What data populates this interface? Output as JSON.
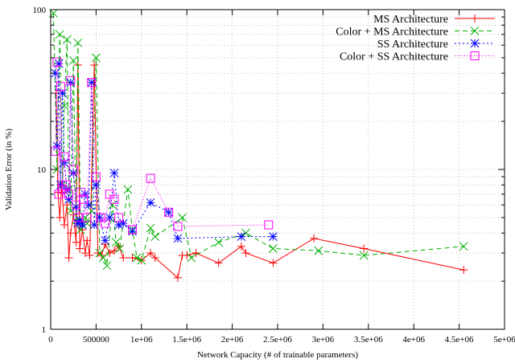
{
  "chart_data": {
    "type": "line",
    "title": "",
    "xlabel": "Network Capacity (# of trainable parameters)",
    "ylabel": "Validation Error (in %)",
    "xlim": [
      0,
      5000000
    ],
    "ylim": [
      1,
      100
    ],
    "yscale": "log",
    "grid": true,
    "grid_style": "dotted",
    "legend_position": "top-right",
    "x_ticks": [
      0,
      500000,
      1000000,
      1500000,
      2000000,
      2500000,
      3000000,
      3500000,
      4000000,
      4500000,
      5000000
    ],
    "x_tick_labels": [
      "0",
      "500000",
      "1e+06",
      "1.5e+06",
      "2e+06",
      "2.5e+06",
      "3e+06",
      "3.5e+06",
      "4e+06",
      "4.5e+06",
      "5e+06"
    ],
    "y_ticks": [
      1,
      10,
      100
    ],
    "y_tick_labels": [
      "1",
      "10",
      "100"
    ],
    "series": [
      {
        "name": "MS Architecture",
        "color": "#ff0000",
        "dash": "solid",
        "marker": "plus",
        "points": [
          [
            60000,
            30
          ],
          [
            80000,
            7.2
          ],
          [
            100000,
            5.0
          ],
          [
            120000,
            8.0
          ],
          [
            150000,
            4.5
          ],
          [
            180000,
            6.0
          ],
          [
            200000,
            2.8
          ],
          [
            220000,
            4.0
          ],
          [
            250000,
            5.2
          ],
          [
            280000,
            3.5
          ],
          [
            300000,
            45
          ],
          [
            320000,
            3.2
          ],
          [
            350000,
            4.2
          ],
          [
            380000,
            3.0
          ],
          [
            400000,
            3.6
          ],
          [
            430000,
            2.9
          ],
          [
            480000,
            45
          ],
          [
            520000,
            3.0
          ],
          [
            560000,
            2.9
          ],
          [
            600000,
            3.4
          ],
          [
            650000,
            3.0
          ],
          [
            700000,
            3.1
          ],
          [
            750000,
            3.3
          ],
          [
            800000,
            2.8
          ],
          [
            900000,
            2.8
          ],
          [
            1000000,
            2.7
          ],
          [
            1100000,
            3.0
          ],
          [
            1150000,
            2.8
          ],
          [
            1400000,
            2.1
          ],
          [
            1450000,
            2.9
          ],
          [
            1500000,
            2.9
          ],
          [
            1600000,
            3.0
          ],
          [
            1850000,
            2.6
          ],
          [
            2100000,
            3.3
          ],
          [
            2150000,
            3.0
          ],
          [
            2450000,
            2.6
          ],
          [
            2900000,
            3.7
          ],
          [
            3450000,
            3.2
          ],
          [
            4550000,
            2.35
          ]
        ]
      },
      {
        "name": "Color + MS Architecture",
        "color": "#00b000",
        "dash": "6,4",
        "marker": "cross",
        "points": [
          [
            30000,
            95
          ],
          [
            70000,
            10
          ],
          [
            100000,
            70
          ],
          [
            130000,
            8.0
          ],
          [
            150000,
            25
          ],
          [
            180000,
            65
          ],
          [
            200000,
            7.5
          ],
          [
            220000,
            5.5
          ],
          [
            250000,
            48
          ],
          [
            280000,
            4.8
          ],
          [
            300000,
            62
          ],
          [
            330000,
            4.2
          ],
          [
            350000,
            4.5
          ],
          [
            380000,
            5.0
          ],
          [
            400000,
            4.6
          ],
          [
            450000,
            5.5
          ],
          [
            500000,
            50
          ],
          [
            540000,
            3.0
          ],
          [
            580000,
            2.8
          ],
          [
            620000,
            2.5
          ],
          [
            680000,
            6.0
          ],
          [
            720000,
            3.5
          ],
          [
            760000,
            3.2
          ],
          [
            850000,
            7.5
          ],
          [
            900000,
            4.2
          ],
          [
            950000,
            2.8
          ],
          [
            1000000,
            2.7
          ],
          [
            1100000,
            4.3
          ],
          [
            1150000,
            3.8
          ],
          [
            1450000,
            5.0
          ],
          [
            1550000,
            2.8
          ],
          [
            1850000,
            3.5
          ],
          [
            2150000,
            4.0
          ],
          [
            2450000,
            3.2
          ],
          [
            2950000,
            3.1
          ],
          [
            3450000,
            2.9
          ],
          [
            4550000,
            3.3
          ]
        ]
      },
      {
        "name": "SS Architecture",
        "color": "#0000ff",
        "dash": "2,3",
        "marker": "star",
        "points": [
          [
            50000,
            40
          ],
          [
            70000,
            14
          ],
          [
            90000,
            46
          ],
          [
            110000,
            8.0
          ],
          [
            130000,
            30
          ],
          [
            150000,
            11
          ],
          [
            180000,
            7.5
          ],
          [
            200000,
            6.5
          ],
          [
            220000,
            35
          ],
          [
            250000,
            9.5
          ],
          [
            280000,
            5.8
          ],
          [
            300000,
            4.6
          ],
          [
            320000,
            4.8
          ],
          [
            350000,
            4.5
          ],
          [
            380000,
            7.0
          ],
          [
            420000,
            6.0
          ],
          [
            450000,
            35
          ],
          [
            480000,
            4.5
          ],
          [
            500000,
            8.0
          ],
          [
            540000,
            5.0
          ],
          [
            600000,
            3.6
          ],
          [
            650000,
            5.0
          ],
          [
            700000,
            9.5
          ],
          [
            750000,
            4.5
          ],
          [
            800000,
            4.6
          ],
          [
            900000,
            4.1
          ],
          [
            1100000,
            6.2
          ],
          [
            1300000,
            5.4
          ],
          [
            1400000,
            3.7
          ],
          [
            2100000,
            3.8
          ],
          [
            2450000,
            3.8
          ]
        ]
      },
      {
        "name": "Color + SS Architecture",
        "color": "#ff00ff",
        "dash": "1,2",
        "marker": "square",
        "points": [
          [
            50000,
            13
          ],
          [
            70000,
            47
          ],
          [
            90000,
            7.0
          ],
          [
            110000,
            33
          ],
          [
            130000,
            7.5
          ],
          [
            150000,
            12
          ],
          [
            170000,
            8.0
          ],
          [
            200000,
            7.0
          ],
          [
            220000,
            36
          ],
          [
            250000,
            10
          ],
          [
            280000,
            6.0
          ],
          [
            300000,
            5.0
          ],
          [
            330000,
            7.2
          ],
          [
            360000,
            6.5
          ],
          [
            400000,
            5.0
          ],
          [
            450000,
            35
          ],
          [
            500000,
            9.0
          ],
          [
            550000,
            5.0
          ],
          [
            600000,
            4.6
          ],
          [
            650000,
            7.0
          ],
          [
            700000,
            6.5
          ],
          [
            750000,
            5.0
          ],
          [
            900000,
            4.2
          ],
          [
            1100000,
            8.8
          ],
          [
            1300000,
            5.4
          ],
          [
            1400000,
            4.4
          ],
          [
            2400000,
            4.5
          ]
        ]
      }
    ]
  }
}
